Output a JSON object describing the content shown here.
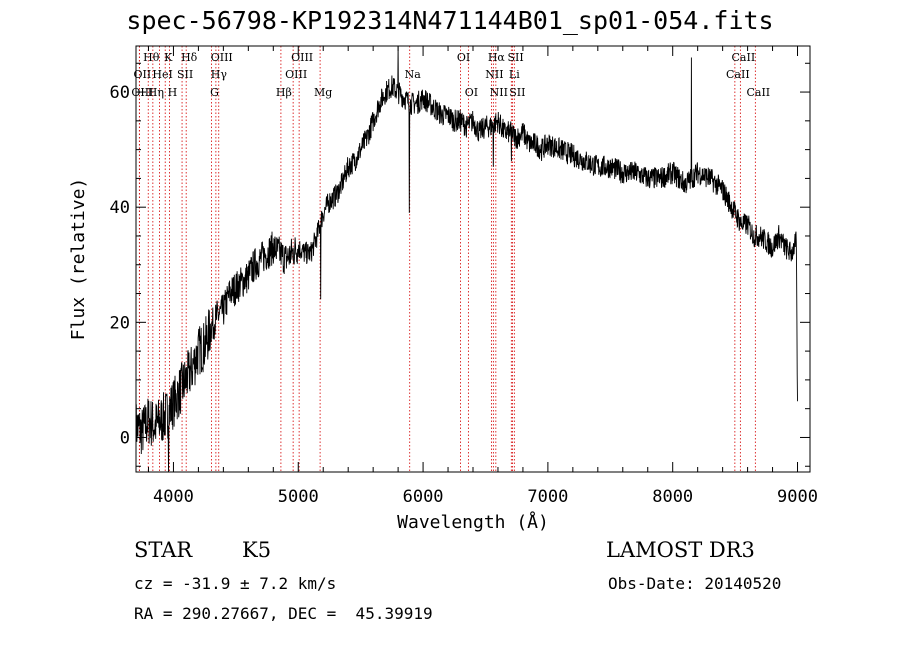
{
  "chart_data": {
    "type": "line",
    "title": "spec-56798-KP192314N471144B01_sp01-054.fits",
    "xlabel": "Wavelength (Å)",
    "ylabel": "Flux (relative)",
    "xlim": [
      3700,
      9100
    ],
    "ylim": [
      -6,
      68
    ],
    "xticks": [
      4000,
      5000,
      6000,
      7000,
      8000,
      9000
    ],
    "yticks": [
      0,
      20,
      40,
      60
    ],
    "series": [
      {
        "name": "flux",
        "x": [
          3700,
          3750,
          3800,
          3850,
          3900,
          3950,
          4000,
          4050,
          4100,
          4150,
          4200,
          4250,
          4300,
          4350,
          4400,
          4450,
          4500,
          4550,
          4600,
          4650,
          4700,
          4750,
          4800,
          4850,
          4900,
          4950,
          5000,
          5050,
          5100,
          5150,
          5200,
          5250,
          5300,
          5350,
          5400,
          5450,
          5500,
          5550,
          5600,
          5650,
          5700,
          5750,
          5800,
          5850,
          5900,
          5950,
          6000,
          6050,
          6100,
          6150,
          6200,
          6250,
          6300,
          6350,
          6400,
          6450,
          6500,
          6550,
          6600,
          6650,
          6700,
          6750,
          6800,
          6850,
          6900,
          6950,
          7000,
          7100,
          7200,
          7300,
          7400,
          7500,
          7600,
          7700,
          7800,
          7900,
          8000,
          8100,
          8200,
          8300,
          8400,
          8450,
          8500,
          8550,
          8600,
          8650,
          8700,
          8750,
          8800,
          8850,
          8900,
          8950,
          8990,
          9000
        ],
        "y": [
          2,
          1,
          3,
          2,
          3,
          4,
          6,
          8,
          10,
          12,
          15,
          16,
          19,
          21,
          22,
          25,
          26,
          27,
          28,
          30,
          31,
          32,
          33,
          32,
          31,
          32,
          33,
          32,
          32,
          35,
          39,
          41,
          42,
          44,
          47,
          48,
          50,
          52,
          55,
          58,
          60,
          61,
          60,
          59,
          58,
          58,
          59,
          58,
          57,
          56,
          56,
          55,
          55,
          54,
          55,
          53,
          54,
          54,
          55,
          53,
          53,
          52,
          53,
          51,
          51,
          50,
          51,
          50,
          49,
          48,
          47,
          47,
          46,
          46,
          45,
          45,
          46,
          44,
          46,
          45,
          43,
          41,
          39,
          37,
          37,
          35,
          35,
          34,
          33,
          35,
          33,
          32,
          34,
          5
        ]
      }
    ],
    "spikes": [
      {
        "x": 3960,
        "y": -6
      },
      {
        "x": 5890,
        "y": 39
      },
      {
        "x": 6563,
        "y": 47
      },
      {
        "x": 8150,
        "y": 66
      },
      {
        "x": 5800,
        "y": 68
      },
      {
        "x": 5180,
        "y": 24
      },
      {
        "x": 4862,
        "y": 30
      },
      {
        "x": 6707,
        "y": 48
      }
    ],
    "lines": [
      {
        "label": "Hθ",
        "x": 3798,
        "row": 0
      },
      {
        "label": "K",
        "x": 3934,
        "row": 0
      },
      {
        "label": "Hδ",
        "x": 4102,
        "row": 0
      },
      {
        "label": "OIII",
        "x": 4363,
        "row": 0
      },
      {
        "label": "OIII",
        "x": 5007,
        "row": 0
      },
      {
        "label": "OI",
        "x": 6300,
        "row": 0
      },
      {
        "label": "Hα",
        "x": 6563,
        "row": 0
      },
      {
        "label": "SII",
        "x": 6717,
        "row": 0
      },
      {
        "label": "CaII",
        "x": 8542,
        "row": 0
      },
      {
        "label": "OII",
        "x": 3727,
        "row": 1
      },
      {
        "label": "HeI",
        "x": 3889,
        "row": 1
      },
      {
        "label": "SII",
        "x": 4069,
        "row": 1
      },
      {
        "label": "Hγ",
        "x": 4340,
        "row": 1
      },
      {
        "label": "OIII",
        "x": 4959,
        "row": 1
      },
      {
        "label": "Na",
        "x": 5893,
        "row": 1
      },
      {
        "label": "NII",
        "x": 6548,
        "row": 1
      },
      {
        "label": "Li",
        "x": 6707,
        "row": 1
      },
      {
        "label": "CaII",
        "x": 8498,
        "row": 1
      },
      {
        "label": "OIII",
        "x": 3727,
        "row": 2
      },
      {
        "label": "Hη",
        "x": 3835,
        "row": 2
      },
      {
        "label": "H",
        "x": 3968,
        "row": 2
      },
      {
        "label": "G",
        "x": 4305,
        "row": 2
      },
      {
        "label": "Hβ",
        "x": 4861,
        "row": 2
      },
      {
        "label": "Mg",
        "x": 5175,
        "row": 2
      },
      {
        "label": "OI",
        "x": 6363,
        "row": 2
      },
      {
        "label": "NII",
        "x": 6583,
        "row": 2
      },
      {
        "label": "SII",
        "x": 6731,
        "row": 2
      },
      {
        "label": "CaII",
        "x": 8662,
        "row": 2
      }
    ]
  },
  "info": {
    "class": "STAR",
    "subclass": "K5",
    "survey": "LAMOST DR3",
    "cz": "cz = -31.9 ± 7.2 km/s",
    "obs_date": "Obs-Date: 20140520",
    "coords": "RA = 290.27667, DEC =  45.39919"
  }
}
